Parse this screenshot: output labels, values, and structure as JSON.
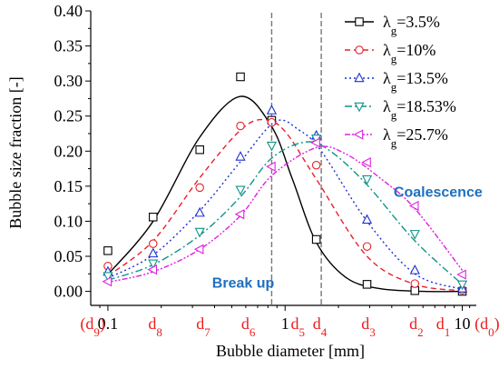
{
  "chart_data": {
    "type": "line",
    "xscale": "log",
    "xlabel": "Bubble diameter [mm]",
    "ylabel": "Bubble size fraction [-]",
    "xlim": [
      0.08,
      12
    ],
    "ylim": [
      -0.02,
      0.4
    ],
    "yticks": [
      0.0,
      0.05,
      0.1,
      0.15,
      0.2,
      0.25,
      0.3,
      0.35,
      0.4
    ],
    "xticks": [
      {
        "x": 0.1,
        "label": "0.1"
      },
      {
        "x": 1,
        "label": "1"
      },
      {
        "x": 10,
        "label": "10"
      }
    ],
    "class_labels": [
      {
        "x": 0.082,
        "label": "(d9)"
      },
      {
        "x": 0.185,
        "label": "d8"
      },
      {
        "x": 0.345,
        "label": "d7"
      },
      {
        "x": 0.62,
        "label": "d6"
      },
      {
        "x": 1.18,
        "label": "d5"
      },
      {
        "x": 1.57,
        "label": "d4"
      },
      {
        "x": 2.95,
        "label": "d3"
      },
      {
        "x": 5.5,
        "label": "d2"
      },
      {
        "x": 7.8,
        "label": "d1"
      },
      {
        "x": 13.8,
        "label": "(d0)"
      }
    ],
    "vlines": [
      0.84,
      1.6
    ],
    "annotations": [
      {
        "text": "Break up",
        "x": 0.58,
        "y": 0.005
      },
      {
        "text": "Coalescence",
        "x": 7.3,
        "y": 0.135
      }
    ],
    "series": [
      {
        "name": "λg=3.5%",
        "color": "#000000",
        "dash": "",
        "marker": "square",
        "points": [
          [
            0.1,
            0.058
          ],
          [
            0.18,
            0.106
          ],
          [
            0.33,
            0.202
          ],
          [
            0.56,
            0.306
          ],
          [
            0.84,
            0.244
          ],
          [
            1.5,
            0.074
          ],
          [
            2.9,
            0.01
          ],
          [
            5.4,
            0.001
          ],
          [
            10,
            0.0
          ]
        ],
        "fit": [
          [
            0.1,
            0.024
          ],
          [
            0.18,
            0.1
          ],
          [
            0.33,
            0.22
          ],
          [
            0.56,
            0.278
          ],
          [
            0.84,
            0.235
          ],
          [
            1.1,
            0.16
          ],
          [
            1.5,
            0.07
          ],
          [
            2.2,
            0.02
          ],
          [
            3.4,
            0.004
          ],
          [
            6,
            0.0
          ],
          [
            10,
            0.0
          ]
        ]
      },
      {
        "name": "λg=10%",
        "color": "#e8202a",
        "dash": "6 4",
        "marker": "circle",
        "points": [
          [
            0.1,
            0.036
          ],
          [
            0.18,
            0.068
          ],
          [
            0.33,
            0.148
          ],
          [
            0.56,
            0.236
          ],
          [
            0.84,
            0.241
          ],
          [
            1.5,
            0.18
          ],
          [
            2.9,
            0.064
          ],
          [
            5.4,
            0.011
          ],
          [
            10,
            0.002
          ]
        ],
        "fit": [
          [
            0.1,
            0.022
          ],
          [
            0.18,
            0.072
          ],
          [
            0.33,
            0.162
          ],
          [
            0.56,
            0.23
          ],
          [
            0.76,
            0.245
          ],
          [
            1.0,
            0.228
          ],
          [
            1.5,
            0.16
          ],
          [
            2.9,
            0.05
          ],
          [
            5.4,
            0.01
          ],
          [
            10,
            0.001
          ]
        ]
      },
      {
        "name": "λg=13.5%",
        "color": "#1e2fd6",
        "dash": "2 3",
        "marker": "triangle-up",
        "points": [
          [
            0.1,
            0.028
          ],
          [
            0.18,
            0.054
          ],
          [
            0.33,
            0.112
          ],
          [
            0.56,
            0.192
          ],
          [
            0.84,
            0.258
          ],
          [
            1.5,
            0.222
          ],
          [
            2.9,
            0.102
          ],
          [
            5.4,
            0.03
          ],
          [
            10,
            0.004
          ]
        ],
        "fit": [
          [
            0.1,
            0.019
          ],
          [
            0.18,
            0.052
          ],
          [
            0.33,
            0.115
          ],
          [
            0.56,
            0.185
          ],
          [
            0.88,
            0.242
          ],
          [
            1.2,
            0.23
          ],
          [
            1.6,
            0.2
          ],
          [
            2.9,
            0.1
          ],
          [
            5.4,
            0.025
          ],
          [
            10,
            0.003
          ]
        ]
      },
      {
        "name": "λg=18.53%",
        "color": "#10948a",
        "dash": "8 3 2 3",
        "marker": "triangle-down",
        "points": [
          [
            0.1,
            0.022
          ],
          [
            0.18,
            0.04
          ],
          [
            0.33,
            0.085
          ],
          [
            0.56,
            0.145
          ],
          [
            0.84,
            0.208
          ],
          [
            1.5,
            0.218
          ],
          [
            2.9,
            0.16
          ],
          [
            5.4,
            0.082
          ],
          [
            10,
            0.01
          ]
        ],
        "fit": [
          [
            0.1,
            0.016
          ],
          [
            0.18,
            0.038
          ],
          [
            0.33,
            0.08
          ],
          [
            0.56,
            0.135
          ],
          [
            0.84,
            0.19
          ],
          [
            1.3,
            0.213
          ],
          [
            1.8,
            0.2
          ],
          [
            2.9,
            0.152
          ],
          [
            5.4,
            0.072
          ],
          [
            10,
            0.01
          ]
        ]
      },
      {
        "name": "λg=25.7%",
        "color": "#e020e0",
        "dash": "6 2 2 2 2 2",
        "marker": "triangle-left",
        "points": [
          [
            0.1,
            0.014
          ],
          [
            0.18,
            0.031
          ],
          [
            0.33,
            0.06
          ],
          [
            0.56,
            0.11
          ],
          [
            0.84,
            0.178
          ],
          [
            1.5,
            0.212
          ],
          [
            2.9,
            0.184
          ],
          [
            5.4,
            0.122
          ],
          [
            10,
            0.024
          ]
        ],
        "fit": [
          [
            0.1,
            0.013
          ],
          [
            0.18,
            0.028
          ],
          [
            0.33,
            0.06
          ],
          [
            0.56,
            0.108
          ],
          [
            0.84,
            0.165
          ],
          [
            1.5,
            0.205
          ],
          [
            2.2,
            0.196
          ],
          [
            3.5,
            0.16
          ],
          [
            5.4,
            0.118
          ],
          [
            10,
            0.03
          ]
        ]
      }
    ]
  }
}
